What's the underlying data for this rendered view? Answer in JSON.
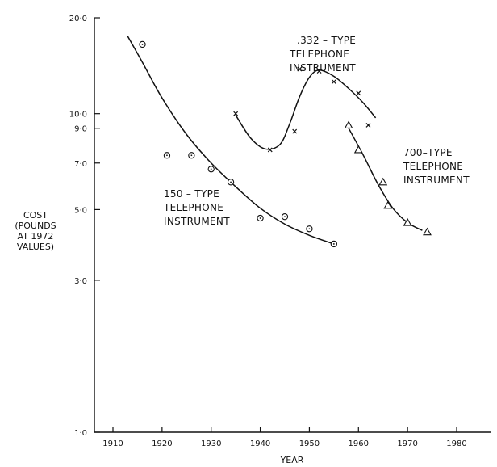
{
  "chart_data": {
    "type": "scatter",
    "title": "",
    "xlabel": "YEAR",
    "ylabel_lines": [
      "COST",
      "(POUNDS",
      "AT 1972",
      "VALUES)"
    ],
    "xlim": [
      1900,
      1985
    ],
    "ylim": [
      1.0,
      20.0
    ],
    "y_scale": "log",
    "grid": false,
    "x_ticks": [
      1910,
      1920,
      1930,
      1940,
      1950,
      1960,
      1970,
      1980
    ],
    "x_tick_labels": [
      "1910",
      "1920",
      "1930",
      "1940",
      "1950",
      "1960",
      "1970",
      "1980"
    ],
    "y_ticks": [
      1.0,
      3.0,
      5.0,
      7.0,
      9.0,
      10.0,
      20.0
    ],
    "y_tick_labels": [
      "1·0",
      "3·0",
      "5·0",
      "7·0",
      "9·0",
      "10·0",
      "20·0"
    ],
    "series": [
      {
        "name_lines": [
          "150 – TYPE",
          "TELEPHONE",
          "INSTRUMENT"
        ],
        "marker": "circle-dot",
        "points": [
          [
            1916,
            16.5
          ],
          [
            1921,
            7.4
          ],
          [
            1926,
            7.4
          ],
          [
            1930,
            6.7
          ],
          [
            1934,
            6.1
          ],
          [
            1940,
            4.7
          ],
          [
            1945,
            4.75
          ],
          [
            1950,
            4.35
          ],
          [
            1955,
            3.9
          ]
        ],
        "curve": [
          [
            1913,
            17.5
          ],
          [
            1916,
            14.5
          ],
          [
            1920,
            11.2
          ],
          [
            1925,
            8.6
          ],
          [
            1930,
            7.0
          ],
          [
            1935,
            5.9
          ],
          [
            1940,
            5.05
          ],
          [
            1945,
            4.5
          ],
          [
            1950,
            4.15
          ],
          [
            1955,
            3.9
          ]
        ]
      },
      {
        "name_lines": [
          ".332 – TYPE",
          "TELEPHONE",
          "INSTRUMENT"
        ],
        "marker": "cross",
        "points": [
          [
            1935,
            10.0
          ],
          [
            1942,
            7.7
          ],
          [
            1947,
            8.8
          ],
          [
            1948,
            13.8
          ],
          [
            1952,
            13.6
          ],
          [
            1955,
            12.6
          ],
          [
            1960,
            11.6
          ],
          [
            1962,
            9.2
          ]
        ],
        "curve": [
          [
            1935,
            9.9
          ],
          [
            1938,
            8.4
          ],
          [
            1941,
            7.75
          ],
          [
            1944,
            8.0
          ],
          [
            1946,
            9.3
          ],
          [
            1948,
            11.3
          ],
          [
            1950,
            13.0
          ],
          [
            1952,
            13.7
          ],
          [
            1955,
            13.1
          ],
          [
            1958,
            12.0
          ],
          [
            1961,
            10.8
          ],
          [
            1963.5,
            9.7
          ]
        ]
      },
      {
        "name_lines": [
          "700–TYPE",
          "TELEPHONE",
          "INSTRUMENT"
        ],
        "marker": "triangle",
        "points": [
          [
            1958,
            9.2
          ],
          [
            1960,
            7.7
          ],
          [
            1965,
            6.1
          ],
          [
            1966,
            5.15
          ],
          [
            1970,
            4.55
          ],
          [
            1974,
            4.25
          ]
        ],
        "curve": [
          [
            1958,
            9.0
          ],
          [
            1961,
            7.4
          ],
          [
            1964,
            6.0
          ],
          [
            1967,
            5.05
          ],
          [
            1970,
            4.55
          ],
          [
            1973,
            4.3
          ]
        ]
      }
    ]
  }
}
